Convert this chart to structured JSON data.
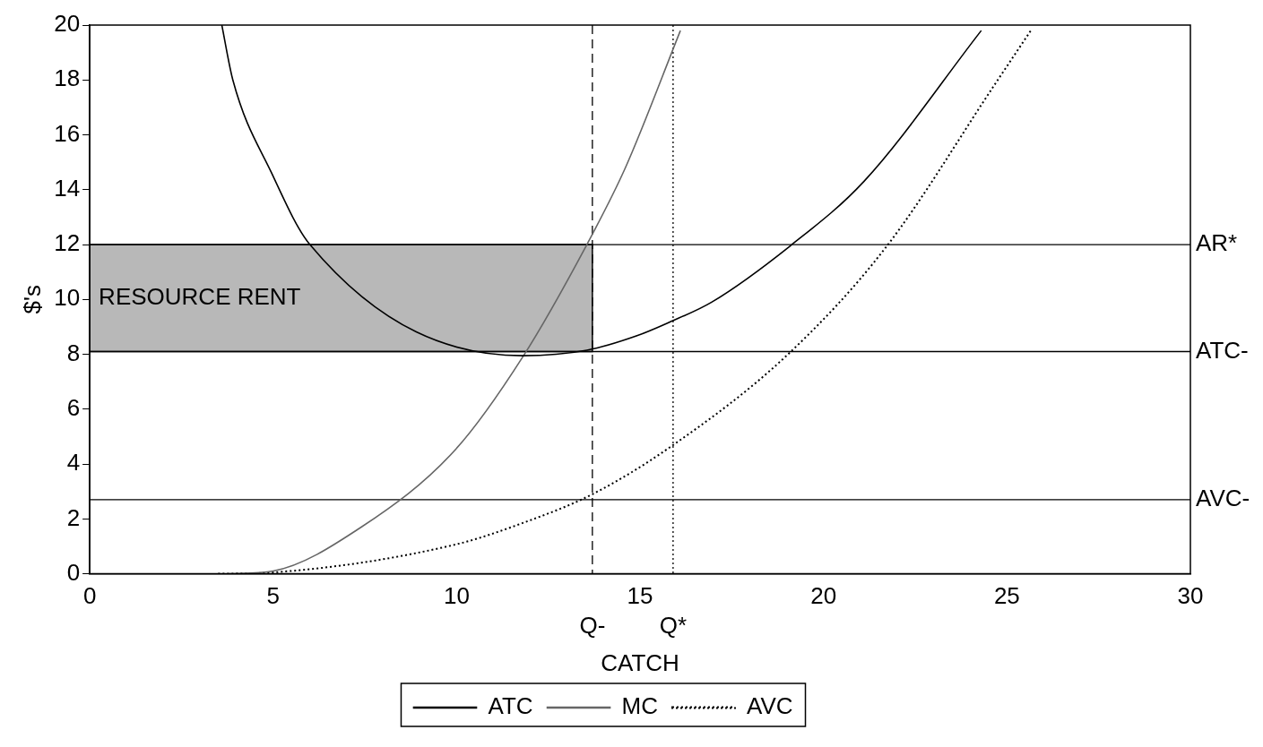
{
  "chart_data": {
    "type": "line",
    "xlabel": "CATCH",
    "ylabel": "$'s",
    "xlim": [
      0,
      30
    ],
    "ylim": [
      0,
      20
    ],
    "xticks": [
      0,
      5,
      10,
      15,
      20,
      25,
      30
    ],
    "yticks": [
      0,
      2,
      4,
      6,
      8,
      10,
      12,
      14,
      16,
      18,
      20
    ],
    "grid": false,
    "legend": "bottom",
    "marker": "none",
    "series": [
      {
        "name": "ATC",
        "color": "#000000",
        "line_style": "solid",
        "x": [
          3.6,
          3.9,
          4.96,
          6.0,
          11.8,
          13.55,
          14.9,
          15.8,
          16.95,
          19.1,
          21.1,
          24.3
        ],
        "values": [
          20,
          18.0,
          14.6,
          12.0,
          7.95,
          8.15,
          8.67,
          9.17,
          9.9,
          11.96,
          14.3,
          19.8
        ]
      },
      {
        "name": "MC",
        "color": "#666666",
        "line_style": "solid",
        "x": [
          3.8,
          5.0,
          7.4,
          9.95,
          11.8,
          13.55,
          14.6,
          16.1
        ],
        "values": [
          0,
          0.1,
          1.7,
          4.5,
          7.9,
          12.0,
          14.8,
          19.8
        ]
      },
      {
        "name": "AVC",
        "color": "#000000",
        "line_style": "dotted",
        "x": [
          3.5,
          5.0,
          9.95,
          11.8,
          13.7,
          15.8,
          19.0,
          21.7,
          24.7,
          25.65
        ],
        "values": [
          0,
          0.05,
          1.06,
          1.85,
          2.9,
          4.6,
          7.96,
          11.9,
          17.9,
          19.8
        ]
      }
    ],
    "ref_lines": [
      {
        "axis": "y",
        "value": 12,
        "label": "AR*",
        "line_style": "solid",
        "color": "#000000"
      },
      {
        "axis": "y",
        "value": 8.1,
        "label": "ATC-",
        "line_style": "solid",
        "color": "#000000"
      },
      {
        "axis": "y",
        "value": 2.7,
        "label": "AVC-",
        "line_style": "solid",
        "color": "#000000"
      },
      {
        "axis": "x",
        "value": 13.7,
        "label": "Q-",
        "line_style": "dashed",
        "color": "#000000"
      },
      {
        "axis": "x",
        "value": 15.9,
        "label": "Q*",
        "line_style": "dotted",
        "color": "#000000"
      }
    ],
    "bands": [
      {
        "axis": "y",
        "from": 8.1,
        "to": 12,
        "label": "RESOURCE RENT",
        "color": "#b8b8b8"
      }
    ]
  }
}
